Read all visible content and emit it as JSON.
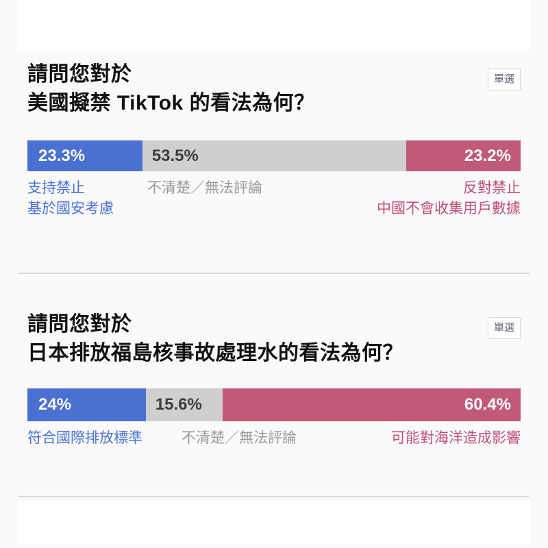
{
  "colors": {
    "page_bg": "#fafafa",
    "card_bg": "#ffffff",
    "blue": "#4a70d1",
    "gray_segment": "#cfcfcf",
    "pink": "#c05a78",
    "blue_text": "#4a72d6",
    "gray_text": "#9a9a9a",
    "dark_pct_text": "#3d3d3d",
    "pink_text": "#c04f78",
    "title_text": "#111111",
    "badge_text": "#5b6170",
    "badge_border": "#d9d9d9",
    "divider": "#d8d8d8"
  },
  "polls": [
    {
      "badge": "單選",
      "question": [
        "請問您對於",
        "美國擬禁 TikTok 的看法為何？"
      ],
      "pct_labels": [
        "23.3%",
        "53.5%",
        "23.2%"
      ],
      "option_left": [
        "支持禁止",
        "基於國安考慮"
      ],
      "option_middle": "不清楚／無法評論",
      "option_right": [
        "反對禁止",
        "中國不會收集用戶數據"
      ]
    },
    {
      "badge": "單選",
      "question": [
        "請問您對於",
        "日本排放福島核事故處理水的看法為何？"
      ],
      "pct_labels": [
        "24%",
        "15.6%",
        "60.4%"
      ],
      "option_left": [
        "符合國際排放標準"
      ],
      "option_middle": "不清楚／無法評論",
      "option_right": [
        "可能對海洋造成影響"
      ]
    }
  ],
  "chart_data": [
    {
      "type": "bar",
      "stacked": true,
      "orientation": "horizontal",
      "title": "請問您對於美國擬禁 TikTok 的看法為何？",
      "categories": [
        "支持禁止（基於國安考慮）",
        "不清楚／無法評論",
        "反對禁止（中國不會收集用戶數據）"
      ],
      "values": [
        23.3,
        53.5,
        23.2
      ],
      "unit": "%",
      "xlim": [
        0,
        100
      ],
      "colors": [
        "#4a70d1",
        "#cfcfcf",
        "#c05a78"
      ],
      "legend_position": "below-bar"
    },
    {
      "type": "bar",
      "stacked": true,
      "orientation": "horizontal",
      "title": "請問您對於日本排放福島核事故處理水的看法為何？",
      "categories": [
        "符合國際排放標準",
        "不清楚／無法評論",
        "可能對海洋造成影響"
      ],
      "values": [
        24,
        15.6,
        60.4
      ],
      "unit": "%",
      "xlim": [
        0,
        100
      ],
      "colors": [
        "#4a70d1",
        "#cfcfcf",
        "#c05a78"
      ],
      "legend_position": "below-bar"
    }
  ]
}
